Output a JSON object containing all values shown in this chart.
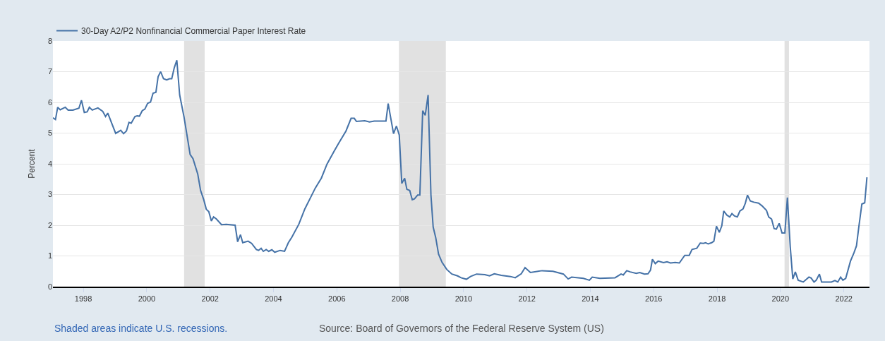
{
  "chart_data": {
    "type": "line",
    "ylabel": "Percent",
    "x": [
      1997.04,
      1997.12,
      1997.19,
      1997.27,
      1997.43,
      1997.52,
      1997.67,
      1997.86,
      1997.94,
      1998.03,
      1998.12,
      1998.19,
      1998.28,
      1998.46,
      1998.61,
      1998.7,
      1998.77,
      1999.02,
      1999.18,
      1999.27,
      1999.36,
      1999.44,
      1999.51,
      1999.63,
      1999.7,
      1999.77,
      1999.86,
      1999.94,
      2000.03,
      2000.12,
      2000.2,
      2000.29,
      2000.36,
      2000.44,
      2000.53,
      2000.63,
      2000.72,
      2000.79,
      2000.87,
      2000.95,
      2001.04,
      2001.18,
      2001.37,
      2001.46,
      2001.61,
      2001.7,
      2001.8,
      2001.88,
      2001.96,
      2002.04,
      2002.11,
      2002.2,
      2002.36,
      2002.51,
      2002.79,
      2002.87,
      2002.96,
      2003.03,
      2003.2,
      2003.31,
      2003.46,
      2003.53,
      2003.61,
      2003.68,
      2003.77,
      2003.85,
      2003.95,
      2004.04,
      2004.21,
      2004.35,
      2004.47,
      2004.58,
      2004.8,
      2004.99,
      2005.17,
      2005.32,
      2005.51,
      2005.69,
      2005.91,
      2006.06,
      2006.29,
      2006.45,
      2006.55,
      2006.62,
      2006.88,
      2007.03,
      2007.18,
      2007.55,
      2007.62,
      2007.71,
      2007.79,
      2007.88,
      2007.97,
      2008.05,
      2008.14,
      2008.21,
      2008.3,
      2008.38,
      2008.45,
      2008.55,
      2008.62,
      2008.71,
      2008.79,
      2008.88,
      2008.97,
      2009.04,
      2009.12,
      2009.21,
      2009.32,
      2009.47,
      2009.63,
      2009.81,
      2009.92,
      2010.09,
      2010.22,
      2010.41,
      2010.67,
      2010.82,
      2010.97,
      2011.19,
      2011.48,
      2011.63,
      2011.82,
      2011.94,
      2012.11,
      2012.48,
      2012.82,
      2013.15,
      2013.3,
      2013.41,
      2013.78,
      2013.97,
      2014.06,
      2014.3,
      2014.78,
      2014.97,
      2015.04,
      2015.15,
      2015.26,
      2015.45,
      2015.56,
      2015.71,
      2015.82,
      2015.9,
      2015.96,
      2016.05,
      2016.14,
      2016.31,
      2016.42,
      2016.53,
      2016.68,
      2016.81,
      2016.98,
      2017.12,
      2017.21,
      2017.36,
      2017.47,
      2017.57,
      2017.64,
      2017.72,
      2017.83,
      2017.9,
      2017.98,
      2018.07,
      2018.15,
      2018.21,
      2018.31,
      2018.4,
      2018.47,
      2018.55,
      2018.64,
      2018.72,
      2018.82,
      2018.89,
      2018.96,
      2019.05,
      2019.16,
      2019.31,
      2019.42,
      2019.56,
      2019.63,
      2019.72,
      2019.8,
      2019.87,
      2019.96,
      2020.05,
      2020.14,
      2020.22,
      2020.31,
      2020.39,
      2020.47,
      2020.56,
      2020.72,
      2020.9,
      2020.97,
      2021.06,
      2021.13,
      2021.23,
      2021.3,
      2021.61,
      2021.72,
      2021.81,
      2021.9,
      2021.97,
      2022.06,
      2022.21,
      2022.32,
      2022.4,
      2022.47,
      2022.57,
      2022.66,
      2022.73
    ],
    "series": [
      {
        "name": "30-Day A2/P2 Nonfinancial Commercial Paper Interest Rate",
        "color": "#4572a7",
        "values": [
          5.5,
          5.44,
          5.84,
          5.76,
          5.84,
          5.75,
          5.75,
          5.81,
          6.07,
          5.67,
          5.69,
          5.84,
          5.75,
          5.82,
          5.71,
          5.54,
          5.65,
          4.99,
          5.09,
          4.98,
          5.07,
          5.35,
          5.32,
          5.54,
          5.56,
          5.55,
          5.73,
          5.78,
          5.97,
          6.01,
          6.3,
          6.33,
          6.84,
          7.0,
          6.77,
          6.73,
          6.77,
          6.77,
          7.13,
          7.37,
          6.24,
          5.51,
          4.3,
          4.17,
          3.67,
          3.13,
          2.83,
          2.52,
          2.44,
          2.14,
          2.27,
          2.2,
          2.02,
          2.03,
          2.0,
          1.46,
          1.69,
          1.43,
          1.48,
          1.41,
          1.21,
          1.18,
          1.25,
          1.15,
          1.21,
          1.15,
          1.2,
          1.12,
          1.18,
          1.15,
          1.43,
          1.61,
          2.03,
          2.53,
          2.9,
          3.21,
          3.53,
          3.99,
          4.4,
          4.67,
          5.07,
          5.48,
          5.48,
          5.38,
          5.4,
          5.36,
          5.39,
          5.39,
          5.96,
          5.44,
          4.98,
          5.23,
          4.94,
          3.36,
          3.53,
          3.17,
          3.13,
          2.83,
          2.86,
          2.98,
          2.98,
          5.73,
          5.58,
          6.24,
          2.98,
          1.94,
          1.6,
          1.06,
          0.79,
          0.56,
          0.41,
          0.35,
          0.29,
          0.24,
          0.33,
          0.41,
          0.39,
          0.35,
          0.42,
          0.37,
          0.33,
          0.29,
          0.42,
          0.62,
          0.46,
          0.52,
          0.5,
          0.41,
          0.25,
          0.31,
          0.27,
          0.21,
          0.31,
          0.27,
          0.29,
          0.41,
          0.38,
          0.52,
          0.48,
          0.43,
          0.46,
          0.41,
          0.42,
          0.54,
          0.89,
          0.75,
          0.83,
          0.78,
          0.81,
          0.77,
          0.79,
          0.77,
          1.02,
          1.02,
          1.21,
          1.25,
          1.42,
          1.41,
          1.43,
          1.39,
          1.43,
          1.48,
          1.97,
          1.77,
          1.98,
          2.46,
          2.33,
          2.27,
          2.38,
          2.3,
          2.27,
          2.46,
          2.53,
          2.71,
          2.98,
          2.79,
          2.75,
          2.72,
          2.63,
          2.48,
          2.27,
          2.2,
          1.89,
          1.87,
          2.06,
          1.75,
          1.75,
          2.9,
          1.29,
          0.25,
          0.48,
          0.21,
          0.15,
          0.31,
          0.28,
          0.15,
          0.21,
          0.41,
          0.15,
          0.15,
          0.2,
          0.15,
          0.31,
          0.21,
          0.27,
          0.83,
          1.1,
          1.33,
          1.91,
          2.69,
          2.73,
          3.56
        ]
      }
    ],
    "xlim": [
      1997.04,
      2022.81
    ],
    "xticks": [
      {
        "value": 1998,
        "label": "1998"
      },
      {
        "value": 2000,
        "label": "2000"
      },
      {
        "value": 2002,
        "label": "2002"
      },
      {
        "value": 2004,
        "label": "2004"
      },
      {
        "value": 2006,
        "label": "2006"
      },
      {
        "value": 2008,
        "label": "2008"
      },
      {
        "value": 2010,
        "label": "2010"
      },
      {
        "value": 2012,
        "label": "2012"
      },
      {
        "value": 2014,
        "label": "2014"
      },
      {
        "value": 2016,
        "label": "2016"
      },
      {
        "value": 2018,
        "label": "2018"
      },
      {
        "value": 2020,
        "label": "2020"
      },
      {
        "value": 2022,
        "label": "2022"
      }
    ],
    "ylim": [
      0,
      8
    ],
    "yticks": [
      0,
      1,
      2,
      3,
      4,
      5,
      6,
      7,
      8
    ],
    "bands": [
      {
        "axis": "x",
        "from": 2001.18,
        "to": 2001.83,
        "color": "#e1e1e1"
      },
      {
        "axis": "x",
        "from": 2007.96,
        "to": 2009.44,
        "color": "#e1e1e1"
      },
      {
        "axis": "x",
        "from": 2020.13,
        "to": 2020.27,
        "color": "#e1e1e1"
      }
    ],
    "grid": "y",
    "legend": "top left",
    "marker": "none",
    "line_style": "solid",
    "annotations": [
      "Shaded areas indicate U.S. recessions.",
      "Source: Board of Governors of the Federal Reserve System (US)"
    ]
  }
}
